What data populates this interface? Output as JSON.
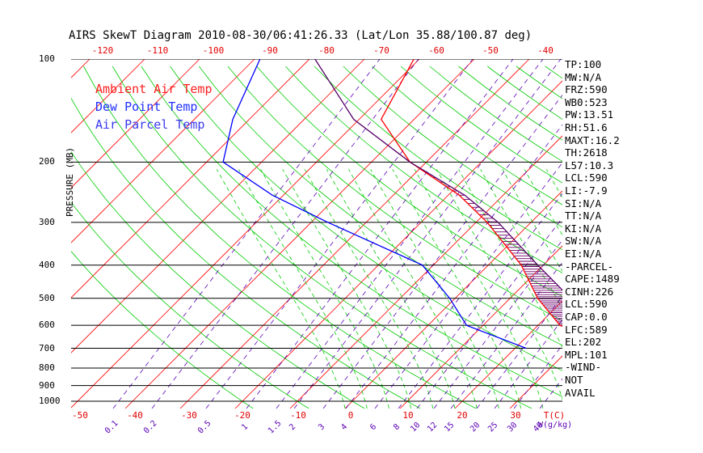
{
  "chart_data": {
    "type": "line",
    "title": "AIRS SkewT Diagram 2010-08-30/06:41:26.33 (Lat/Lon 35.88/100.87 deg)",
    "ylabel": "PRESSURE (MB)",
    "xlabel": "T(C)",
    "mixing_ratio_label": "W(g/kg)",
    "ylim": [
      1000,
      100
    ],
    "pressure_ticks": [
      100,
      200,
      300,
      400,
      500,
      600,
      700,
      800,
      900,
      1000
    ],
    "top_temp_ticks": [
      -120,
      -110,
      -100,
      -90,
      -80,
      -70,
      -60,
      -50,
      -40
    ],
    "bottom_temp_ticks": [
      -50,
      -40,
      -30,
      -20,
      -10,
      0,
      10,
      20,
      30
    ],
    "mixing_ratio_ticks": [
      "0.1",
      "0.2",
      "0.5",
      "1",
      "1.5",
      "2",
      "3",
      "4",
      "6",
      "8",
      "10",
      "12",
      "15",
      "20",
      "25",
      "30",
      "40"
    ],
    "legend": [
      {
        "name": "Ambient Air Temp",
        "color": "#ff0000"
      },
      {
        "name": "Dew Point Temp",
        "color": "#0000ff"
      },
      {
        "name": "Air Parcel Temp",
        "color": "#550066"
      }
    ],
    "series": [
      {
        "name": "Ambient Air Temp",
        "color": "#ff0000",
        "points": [
          [
            700,
            19
          ],
          [
            600,
            4
          ],
          [
            500,
            -5
          ],
          [
            400,
            -14
          ],
          [
            300,
            -28
          ],
          [
            250,
            -38
          ],
          [
            200,
            -53
          ],
          [
            150,
            -66
          ],
          [
            100,
            -71
          ]
        ]
      },
      {
        "name": "Dew Point Temp",
        "color": "#0000ff",
        "points": [
          [
            700,
            2
          ],
          [
            600,
            -13
          ],
          [
            500,
            -21
          ],
          [
            400,
            -32
          ],
          [
            300,
            -57
          ],
          [
            250,
            -72
          ],
          [
            200,
            -87
          ],
          [
            150,
            -93
          ],
          [
            100,
            -99
          ]
        ]
      },
      {
        "name": "Air Parcel Temp",
        "color": "#550066",
        "points": [
          [
            700,
            19
          ],
          [
            600,
            10
          ],
          [
            500,
            1
          ],
          [
            400,
            -11
          ],
          [
            300,
            -26
          ],
          [
            250,
            -37
          ],
          [
            200,
            -53
          ],
          [
            150,
            -71
          ],
          [
            100,
            -89
          ]
        ]
      }
    ]
  },
  "indices": [
    "TP:100",
    "MW:N/A",
    "FRZ:590",
    "WB0:523",
    "PW:13.51",
    "RH:51.6",
    "MAXT:16.2",
    "TH:2618",
    "L57:10.3",
    "LCL:590",
    "LI:-7.9",
    "SI:N/A",
    "TT:N/A",
    "KI:N/A",
    "SW:N/A",
    "EI:N/A",
    "-PARCEL-",
    "CAPE:1489",
    "CINH:226",
    "LCL:590",
    "CAP:0.0",
    "LFC:589",
    "EL:202",
    "MPL:101",
    "-WIND-",
    "NOT",
    "AVAIL"
  ],
  "colors": {
    "isotherm": "#ff0000",
    "dry_adiabat": "#00cc00",
    "moist_adiabat": "#00cc00",
    "mixing_ratio": "#5a00b4",
    "isobar": "#000000",
    "cape_hatch": "#6a006a"
  }
}
